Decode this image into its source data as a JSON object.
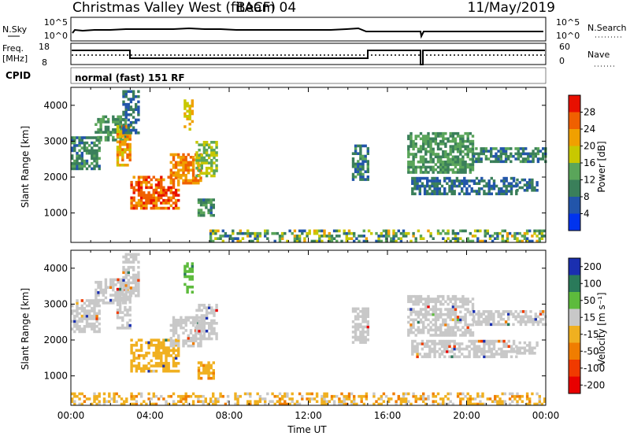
{
  "header": {
    "title": "Christmas Valley West (fitACF)",
    "beam": "Beam 04",
    "date": "11/May/2019"
  },
  "status_panels": {
    "nsky_label": "N.Sky",
    "nsky_ticks": [
      "10^5",
      "10^0"
    ],
    "nsearch_label": "N.Search",
    "nsearch_ticks": [
      "10^5",
      "10^0"
    ],
    "freq_label_line1": "Freq.",
    "freq_label_line2": "[MHz]",
    "freq_ticks": [
      "18",
      "8"
    ],
    "nave_label": "Nave",
    "nave_ticks": [
      "60",
      "0"
    ],
    "cpid_label": "CPID",
    "cpid_value": "normal (fast) 151 RF"
  },
  "colors": {
    "power": [
      "#0033ee",
      "#2255aa",
      "#3a7f5a",
      "#5aa55a",
      "#c8c800",
      "#f0a000",
      "#f06000",
      "#e81000"
    ],
    "velocity": [
      "#1a2fb0",
      "#2a7a5a",
      "#5dbb3c",
      "#c8c8c8",
      "#f0b020",
      "#f07d00",
      "#f03a00",
      "#e80000"
    ],
    "ground": "#f0b000"
  },
  "chart_data": [
    {
      "type": "heatmap",
      "title": "Power",
      "ylabel": "Slant Range [km]",
      "xlabel": "",
      "ylim": [
        180,
        4500
      ],
      "yticks": [
        "1000",
        "2000",
        "3000",
        "4000"
      ],
      "colorbar_label": "Power [dB]",
      "colorbar_ticks": [
        "4",
        "8",
        "12",
        "16",
        "20",
        "24",
        "28"
      ],
      "colorbar_range": [
        0,
        32
      ],
      "regions": [
        {
          "x0": 0.0,
          "x1": 1.5,
          "y0": 2200,
          "y1": 3100,
          "value": 10
        },
        {
          "x0": 1.2,
          "x1": 2.8,
          "y0": 3000,
          "y1": 3700,
          "value": 12
        },
        {
          "x0": 2.3,
          "x1": 3.0,
          "y0": 2300,
          "y1": 3400,
          "value": 22
        },
        {
          "x0": 2.6,
          "x1": 3.4,
          "y0": 3200,
          "y1": 4400,
          "value": 8
        },
        {
          "x0": 3.0,
          "x1": 5.5,
          "y0": 1100,
          "y1": 2000,
          "value": 26
        },
        {
          "x0": 5.0,
          "x1": 6.6,
          "y0": 1800,
          "y1": 2600,
          "value": 24
        },
        {
          "x0": 5.7,
          "x1": 6.2,
          "y0": 3300,
          "y1": 4100,
          "value": 20
        },
        {
          "x0": 6.3,
          "x1": 7.4,
          "y0": 2000,
          "y1": 3000,
          "value": 16
        },
        {
          "x0": 6.4,
          "x1": 7.2,
          "y0": 900,
          "y1": 1400,
          "value": 10
        },
        {
          "x0": 14.2,
          "x1": 15.0,
          "y0": 1900,
          "y1": 2900,
          "value": 10
        },
        {
          "x0": 17.0,
          "x1": 20.3,
          "y0": 2100,
          "y1": 3200,
          "value": 12
        },
        {
          "x0": 17.2,
          "x1": 22.5,
          "y0": 1500,
          "y1": 2000,
          "value": 8
        },
        {
          "x0": 20.3,
          "x1": 24.0,
          "y0": 2400,
          "y1": 2800,
          "value": 10
        },
        {
          "x0": 22.5,
          "x1": 23.6,
          "y0": 1600,
          "y1": 1900,
          "value": 8
        }
      ],
      "ground_scatter": {
        "x0": 7.0,
        "x1": 24.0,
        "y0": 180,
        "y1": 500,
        "value": 14
      }
    },
    {
      "type": "heatmap",
      "title": "Velocity",
      "ylabel": "Slant Range [km]",
      "xlabel": "Time UT",
      "ylim": [
        180,
        4500
      ],
      "yticks": [
        "1000",
        "2000",
        "3000",
        "4000"
      ],
      "xticks": [
        "00:00",
        "04:00",
        "08:00",
        "12:00",
        "16:00",
        "20:00",
        "00:00"
      ],
      "xlim": [
        0,
        24
      ],
      "colorbar_label": "Velocity [m s⁻¹]",
      "colorbar_ticks": [
        "200",
        "100",
        "50",
        "15",
        "-15",
        "-50",
        "-100",
        "-200"
      ],
      "regions": [
        {
          "x0": 0.0,
          "x1": 1.5,
          "y0": 2200,
          "y1": 3100,
          "value": 0
        },
        {
          "x0": 1.2,
          "x1": 2.8,
          "y0": 3000,
          "y1": 3700,
          "value": 0
        },
        {
          "x0": 2.3,
          "x1": 3.0,
          "y0": 2300,
          "y1": 3400,
          "value": 0
        },
        {
          "x0": 2.6,
          "x1": 3.4,
          "y0": 3200,
          "y1": 4400,
          "value": 0
        },
        {
          "x0": 3.0,
          "x1": 5.5,
          "y0": 1100,
          "y1": 2000,
          "value": -30
        },
        {
          "x0": 5.0,
          "x1": 6.6,
          "y0": 1800,
          "y1": 2600,
          "value": 0
        },
        {
          "x0": 5.7,
          "x1": 6.2,
          "y0": 3300,
          "y1": 4100,
          "value": 40
        },
        {
          "x0": 6.3,
          "x1": 7.4,
          "y0": 2000,
          "y1": 3000,
          "value": 0
        },
        {
          "x0": 6.4,
          "x1": 7.2,
          "y0": 900,
          "y1": 1400,
          "value": -40
        },
        {
          "x0": 14.2,
          "x1": 15.0,
          "y0": 1900,
          "y1": 2900,
          "value": 0
        },
        {
          "x0": 17.0,
          "x1": 20.3,
          "y0": 2100,
          "y1": 3200,
          "value": 0
        },
        {
          "x0": 17.2,
          "x1": 22.5,
          "y0": 1500,
          "y1": 2000,
          "value": 0
        },
        {
          "x0": 20.3,
          "x1": 24.0,
          "y0": 2400,
          "y1": 2800,
          "value": 0
        },
        {
          "x0": 22.5,
          "x1": 23.6,
          "y0": 1600,
          "y1": 1900,
          "value": 0
        }
      ],
      "ground_scatter": {
        "x0": 0.0,
        "x1": 24.0,
        "y0": 180,
        "y1": 500,
        "value": -30
      }
    }
  ]
}
